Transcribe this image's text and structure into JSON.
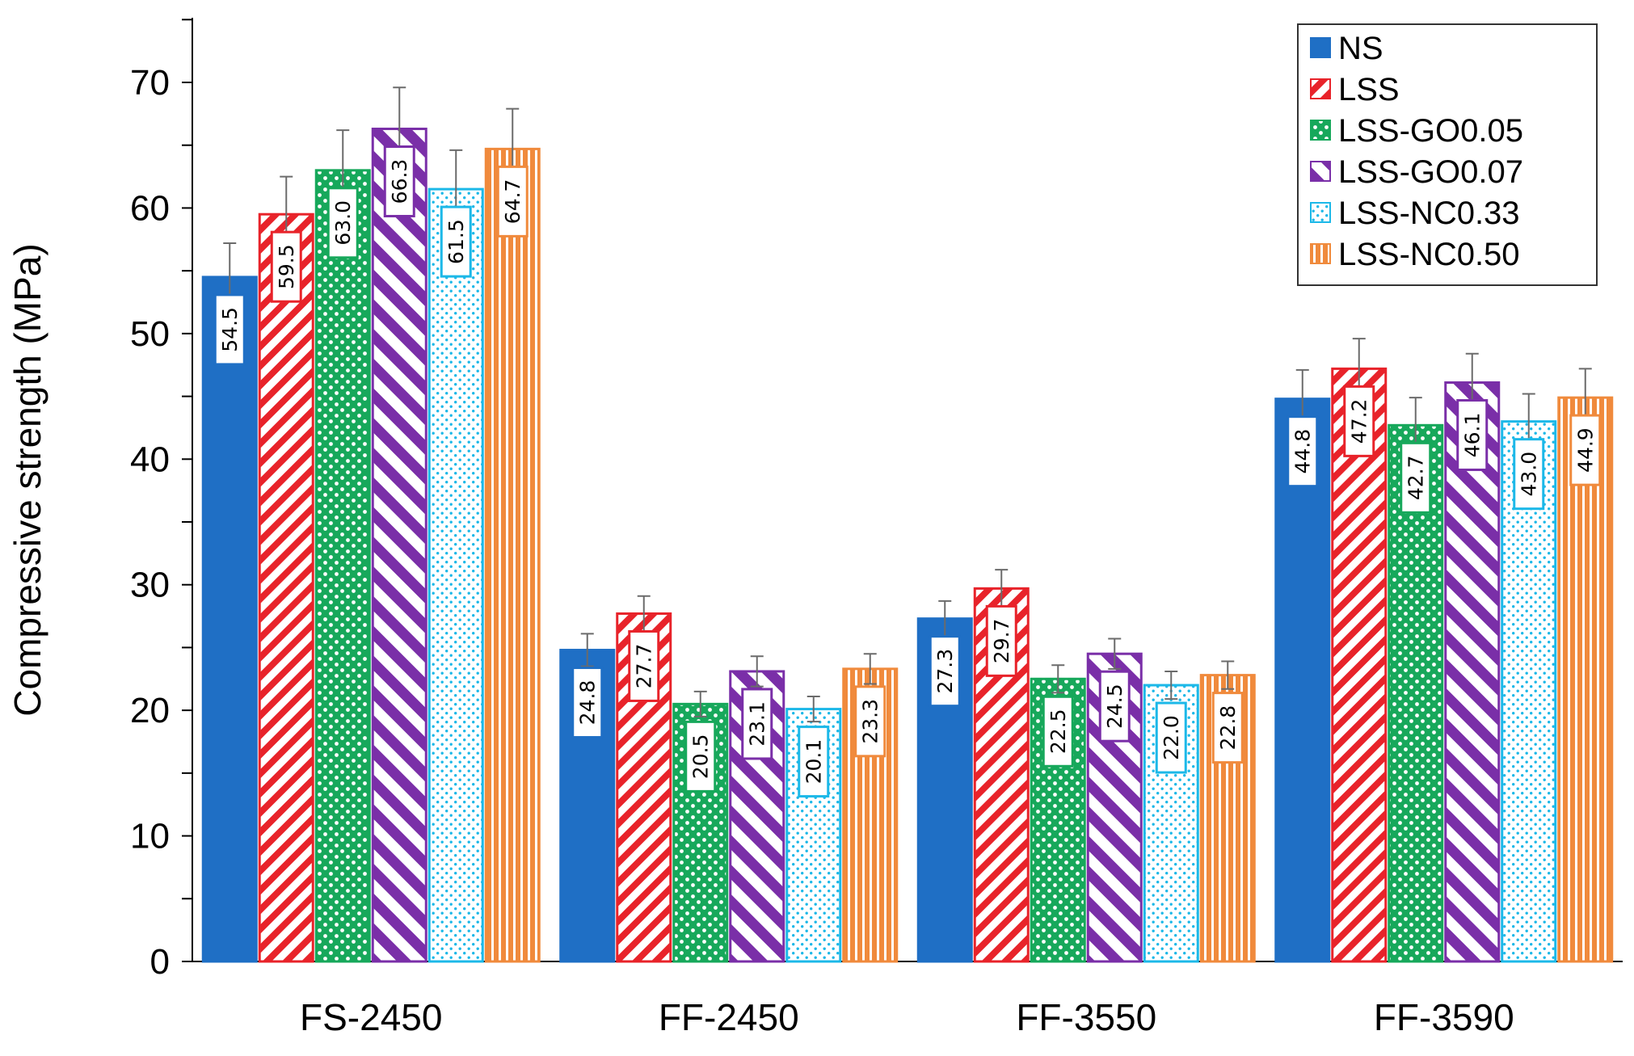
{
  "chart_data": {
    "type": "bar",
    "title": "",
    "xlabel": "",
    "ylabel": "Compressive strength (MPa)",
    "ylim": [
      0,
      75
    ],
    "yticks": [
      0,
      10,
      20,
      30,
      40,
      50,
      60,
      70
    ],
    "categories": [
      "FS-2450",
      "FF-2450",
      "FF-3550",
      "FF-3590"
    ],
    "legend_position": "top-right",
    "series": [
      {
        "name": "NS",
        "color": "#1F6FC5",
        "pattern": "solid",
        "values": [
          54.5,
          24.8,
          27.3,
          44.8
        ],
        "labels": [
          "54.5",
          "24.8",
          "27.3",
          "44.8"
        ],
        "errors": [
          2.7,
          1.3,
          1.4,
          2.3
        ]
      },
      {
        "name": "LSS",
        "color": "#E8232A",
        "pattern": "diagonal-up",
        "values": [
          59.5,
          27.7,
          29.7,
          47.2
        ],
        "labels": [
          "59.5",
          "27.7",
          "29.7",
          "47.2"
        ],
        "errors": [
          3.0,
          1.4,
          1.5,
          2.4
        ]
      },
      {
        "name": "LSS-GO0.05",
        "color": "#17A85B",
        "pattern": "dots-large",
        "values": [
          63.0,
          20.5,
          22.5,
          42.7
        ],
        "labels": [
          "63.0",
          "20.5",
          "22.5",
          "42.7"
        ],
        "errors": [
          3.2,
          1.0,
          1.1,
          2.2
        ]
      },
      {
        "name": "LSS-GO0.07",
        "color": "#7A2FA8",
        "pattern": "diagonal-down",
        "values": [
          66.3,
          23.1,
          24.5,
          46.1
        ],
        "labels": [
          "66.3",
          "23.1",
          "24.5",
          "46.1"
        ],
        "errors": [
          3.3,
          1.2,
          1.2,
          2.3
        ]
      },
      {
        "name": "LSS-NC0.33",
        "color": "#1CB8E8",
        "pattern": "dots-small",
        "values": [
          61.5,
          20.1,
          22.0,
          43.0
        ],
        "labels": [
          "61.5",
          "20.1",
          "22.0",
          "43.0"
        ],
        "errors": [
          3.1,
          1.0,
          1.1,
          2.2
        ]
      },
      {
        "name": "LSS-NC0.50",
        "color": "#F08A3C",
        "pattern": "vertical",
        "values": [
          64.7,
          23.3,
          22.8,
          44.9
        ],
        "labels": [
          "64.7",
          "23.3",
          "22.8",
          "44.9"
        ],
        "errors": [
          3.2,
          1.2,
          1.1,
          2.3
        ]
      }
    ]
  }
}
